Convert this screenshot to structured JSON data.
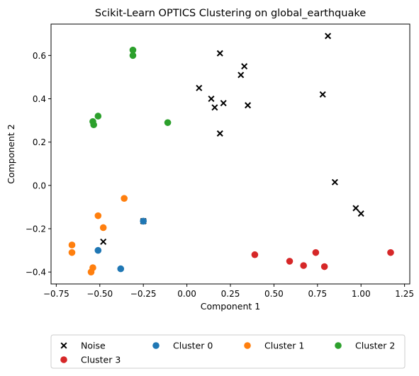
{
  "chart_data": {
    "type": "scatter",
    "title": "Scikit-Learn OPTICS Clustering on global_earthquake",
    "xlabel": "Component 1",
    "ylabel": "Component 2",
    "xlim": [
      -0.78,
      1.28
    ],
    "ylim": [
      -0.455,
      0.745
    ],
    "xticks": [
      -0.75,
      -0.5,
      -0.25,
      0.0,
      0.25,
      0.5,
      0.75,
      1.0,
      1.25
    ],
    "xtick_labels": [
      "−0.75",
      "−0.50",
      "−0.25",
      "0.00",
      "0.25",
      "0.50",
      "0.75",
      "1.00",
      "1.25"
    ],
    "yticks": [
      -0.4,
      -0.2,
      0.0,
      0.2,
      0.4,
      0.6
    ],
    "ytick_labels": [
      "−0.4",
      "−0.2",
      "0.0",
      "0.2",
      "0.4",
      "0.6"
    ],
    "grid": false,
    "legend_position": "bottom-center, below plot",
    "series": [
      {
        "name": "Noise",
        "marker": "x",
        "color": "#000000",
        "points": [
          [
            0.81,
            0.69
          ],
          [
            0.19,
            0.61
          ],
          [
            0.33,
            0.55
          ],
          [
            0.31,
            0.51
          ],
          [
            0.07,
            0.45
          ],
          [
            0.14,
            0.4
          ],
          [
            0.78,
            0.42
          ],
          [
            0.21,
            0.38
          ],
          [
            0.35,
            0.37
          ],
          [
            0.16,
            0.36
          ],
          [
            0.19,
            0.24
          ],
          [
            0.85,
            0.015
          ],
          [
            0.97,
            -0.105
          ],
          [
            1.0,
            -0.13
          ],
          [
            -0.25,
            -0.165
          ],
          [
            -0.48,
            -0.26
          ]
        ]
      },
      {
        "name": "Cluster 0",
        "marker": "o",
        "color": "#1f77b4",
        "points": [
          [
            -0.25,
            -0.165
          ],
          [
            -0.51,
            -0.3
          ],
          [
            -0.38,
            -0.385
          ]
        ]
      },
      {
        "name": "Cluster 1",
        "marker": "o",
        "color": "#ff7f0e",
        "points": [
          [
            -0.36,
            -0.06
          ],
          [
            -0.51,
            -0.14
          ],
          [
            -0.48,
            -0.195
          ],
          [
            -0.66,
            -0.275
          ],
          [
            -0.66,
            -0.31
          ],
          [
            -0.54,
            -0.38
          ],
          [
            -0.55,
            -0.4
          ]
        ]
      },
      {
        "name": "Cluster 2",
        "marker": "o",
        "color": "#2ca02c",
        "points": [
          [
            -0.31,
            0.625
          ],
          [
            -0.31,
            0.6
          ],
          [
            -0.51,
            0.32
          ],
          [
            -0.54,
            0.295
          ],
          [
            -0.535,
            0.28
          ],
          [
            -0.11,
            0.29
          ]
        ]
      },
      {
        "name": "Cluster 3",
        "marker": "o",
        "color": "#d62728",
        "points": [
          [
            0.39,
            -0.32
          ],
          [
            0.59,
            -0.35
          ],
          [
            0.67,
            -0.37
          ],
          [
            0.74,
            -0.31
          ],
          [
            0.79,
            -0.375
          ],
          [
            1.17,
            -0.31
          ]
        ]
      }
    ]
  }
}
